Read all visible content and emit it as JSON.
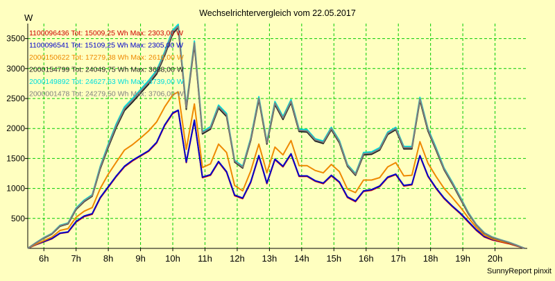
{
  "chart_data": {
    "type": "line",
    "title": "Wechselrichtervergleich vom 22.05.2017",
    "ylabel": "W",
    "xlabel": "",
    "footer": "SunnyReport pinxit",
    "xlim": [
      5.5,
      21.0
    ],
    "ylim": [
      0,
      3750
    ],
    "x_ticks": [
      6,
      7,
      8,
      9,
      10,
      11,
      12,
      13,
      14,
      15,
      16,
      17,
      18,
      19,
      20
    ],
    "x_tick_labels": [
      "6h",
      "7h",
      "8h",
      "9h",
      "10h",
      "11h",
      "12h",
      "13h",
      "14h",
      "15h",
      "16h",
      "17h",
      "18h",
      "19h",
      "20h"
    ],
    "y_ticks": [
      500,
      1000,
      1500,
      2000,
      2500,
      3000,
      3500
    ],
    "y_tick_labels": [
      "500",
      "1000",
      "1500",
      "2000",
      "2500",
      "3000",
      "3500"
    ],
    "grid": true,
    "legend_position": "top-left",
    "colors": {
      "background": "#ffffc0",
      "grid": "#00cc00",
      "axis": "#000000"
    },
    "x": [
      5.5,
      5.75,
      6.0,
      6.25,
      6.5,
      6.75,
      7.0,
      7.25,
      7.5,
      7.75,
      8.0,
      8.25,
      8.5,
      8.75,
      9.0,
      9.25,
      9.5,
      9.75,
      10.0,
      10.17,
      10.42,
      10.67,
      10.92,
      11.17,
      11.42,
      11.67,
      11.92,
      12.17,
      12.42,
      12.67,
      12.92,
      13.17,
      13.42,
      13.67,
      13.92,
      14.17,
      14.42,
      14.67,
      14.92,
      15.17,
      15.42,
      15.67,
      15.92,
      16.17,
      16.42,
      16.67,
      16.92,
      17.17,
      17.42,
      17.67,
      17.92,
      18.17,
      18.42,
      18.67,
      18.92,
      19.17,
      19.42,
      19.67,
      19.92,
      20.17,
      20.42,
      20.67,
      20.92
    ],
    "series": [
      {
        "name": "1100096436 Tot: 15009,25 Wh Max: 2303,00 W",
        "color": "#cc0000",
        "values": [
          0,
          60,
          110,
          160,
          250,
          270,
          440,
          530,
          570,
          840,
          1020,
          1200,
          1360,
          1460,
          1540,
          1620,
          1760,
          2050,
          2250,
          2300,
          1430,
          2130,
          1180,
          1220,
          1440,
          1270,
          880,
          830,
          1100,
          1540,
          1080,
          1480,
          1360,
          1570,
          1200,
          1200,
          1120,
          1080,
          1210,
          1100,
          850,
          780,
          950,
          970,
          1030,
          1180,
          1230,
          1040,
          1060,
          1540,
          1200,
          1000,
          830,
          700,
          580,
          440,
          300,
          190,
          140,
          110,
          80,
          40,
          0
        ]
      },
      {
        "name": "1100096541 Tot: 15109,25 Wh Max: 2305,00 W",
        "color": "#0000cc",
        "values": [
          0,
          65,
          115,
          165,
          255,
          275,
          450,
          540,
          580,
          850,
          1030,
          1210,
          1370,
          1470,
          1550,
          1630,
          1770,
          2060,
          2260,
          2305,
          1440,
          2140,
          1190,
          1230,
          1450,
          1280,
          890,
          840,
          1110,
          1550,
          1090,
          1490,
          1370,
          1580,
          1210,
          1210,
          1130,
          1090,
          1220,
          1110,
          860,
          790,
          960,
          980,
          1040,
          1190,
          1240,
          1050,
          1070,
          1550,
          1210,
          1010,
          840,
          710,
          590,
          450,
          310,
          200,
          150,
          120,
          90,
          45,
          0
        ]
      },
      {
        "name": "2000150622 Tot: 17279,38 Wh Max: 2610,00 W",
        "color": "#ee8800",
        "values": [
          0,
          70,
          130,
          190,
          300,
          330,
          520,
          620,
          680,
          1000,
          1240,
          1440,
          1640,
          1730,
          1840,
          1960,
          2110,
          2360,
          2560,
          2610,
          1650,
          2410,
          1350,
          1410,
          1740,
          1600,
          1050,
          960,
          1290,
          1740,
          1260,
          1690,
          1560,
          1800,
          1380,
          1380,
          1300,
          1260,
          1400,
          1280,
          990,
          930,
          1140,
          1140,
          1180,
          1360,
          1430,
          1210,
          1220,
          1780,
          1420,
          1200,
          1000,
          850,
          690,
          510,
          350,
          220,
          160,
          120,
          90,
          45,
          0
        ]
      },
      {
        "name": "2000154799 Tot: 24049,75 Wh Max: 3688,00 W",
        "color": "#202020",
        "values": [
          0,
          90,
          170,
          240,
          370,
          410,
          650,
          780,
          870,
          1330,
          1690,
          2020,
          2300,
          2440,
          2590,
          2740,
          2910,
          3220,
          3580,
          3688,
          2320,
          3400,
          1910,
          1990,
          2340,
          2200,
          1440,
          1340,
          1800,
          2480,
          1740,
          2400,
          2150,
          2430,
          1950,
          1940,
          1790,
          1750,
          1980,
          1760,
          1370,
          1220,
          1560,
          1570,
          1640,
          1900,
          1980,
          1660,
          1660,
          2470,
          1960,
          1640,
          1310,
          1080,
          830,
          580,
          390,
          250,
          180,
          140,
          100,
          50,
          0
        ]
      },
      {
        "name": "2000149892 Tot: 24627,63 Wh Max: 3739,00 W",
        "color": "#00dddd",
        "values": [
          0,
          95,
          180,
          250,
          385,
          425,
          675,
          805,
          895,
          1370,
          1740,
          2080,
          2360,
          2500,
          2650,
          2800,
          2970,
          3280,
          3640,
          3739,
          2370,
          3460,
          1950,
          2030,
          2390,
          2250,
          1470,
          1370,
          1840,
          2530,
          1780,
          2450,
          2200,
          2480,
          1990,
          1980,
          1830,
          1790,
          2020,
          1800,
          1400,
          1250,
          1600,
          1610,
          1680,
          1940,
          2020,
          1700,
          1700,
          2520,
          2000,
          1680,
          1340,
          1110,
          860,
          600,
          400,
          260,
          190,
          145,
          105,
          55,
          0
        ]
      },
      {
        "name": "2000001478 Tot: 24279,50 Wh Max: 3706,00 W",
        "color": "#808080",
        "values": [
          0,
          92,
          175,
          245,
          378,
          418,
          662,
          792,
          882,
          1350,
          1715,
          2050,
          2330,
          2470,
          2620,
          2770,
          2940,
          3250,
          3610,
          3706,
          2345,
          3430,
          1930,
          2010,
          2365,
          2225,
          1455,
          1355,
          1820,
          2505,
          1760,
          2425,
          2175,
          2455,
          1970,
          1960,
          1810,
          1770,
          2000,
          1780,
          1385,
          1235,
          1580,
          1590,
          1660,
          1920,
          2000,
          1680,
          1680,
          2495,
          1980,
          1660,
          1325,
          1095,
          845,
          590,
          395,
          255,
          185,
          142,
          102,
          52,
          0
        ]
      }
    ]
  }
}
